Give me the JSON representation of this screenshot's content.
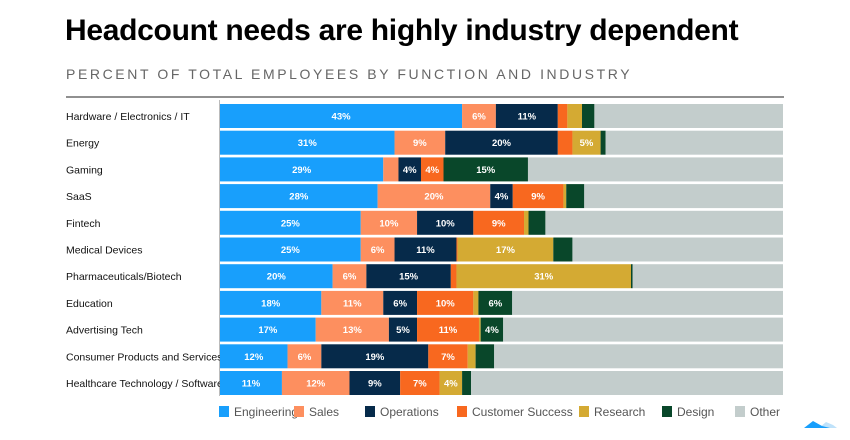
{
  "chart_data": {
    "type": "bar",
    "orientation": "horizontal",
    "stacked": true,
    "title": "Headcount needs are highly industry dependent",
    "subtitle": "PERCENT OF TOTAL EMPLOYEES BY FUNCTION AND INDUSTRY",
    "xlim": [
      0,
      100
    ],
    "grid": false,
    "legend_position": "bottom",
    "categories": [
      "Hardware / Electronics / IT",
      "Energy",
      "Gaming",
      "SaaS",
      "Fintech",
      "Medical Devices",
      "Pharmaceuticals/Biotech",
      "Education",
      "Advertising Tech",
      "Consumer Products and Services",
      "Healthcare Technology / Software"
    ],
    "series": [
      {
        "name": "Engineering",
        "color": "#189ffc",
        "values": [
          43,
          31,
          29,
          28,
          25,
          25,
          20,
          18,
          17,
          12,
          11
        ]
      },
      {
        "name": "Sales",
        "color": "#fd8f5f",
        "values": [
          6,
          9,
          2.7,
          20,
          10,
          6,
          6,
          11,
          13,
          6,
          12
        ]
      },
      {
        "name": "Operations",
        "color": "#062a4a",
        "values": [
          11,
          20,
          4,
          4,
          10,
          11,
          15,
          6,
          5,
          19,
          9
        ]
      },
      {
        "name": "Customer Success",
        "color": "#f8681f",
        "values": [
          1.7,
          2.6,
          4,
          9,
          9,
          0.2,
          1,
          10,
          11,
          7,
          7
        ]
      },
      {
        "name": "Research",
        "color": "#d4aa33",
        "values": [
          2.6,
          5,
          0,
          0.5,
          0.8,
          17,
          31,
          0.9,
          0.3,
          1.4,
          4
        ]
      },
      {
        "name": "Design",
        "color": "#09472a",
        "values": [
          2.2,
          0.9,
          15,
          3.2,
          3,
          3.4,
          0.3,
          6,
          4,
          3.3,
          1.6
        ]
      },
      {
        "name": "Other",
        "color": "#c3cdcc",
        "values": [
          33.5,
          31.5,
          45.3,
          35.3,
          42.2,
          37.4,
          26.7,
          48.1,
          49.7,
          51.3,
          55.4
        ]
      }
    ]
  }
}
